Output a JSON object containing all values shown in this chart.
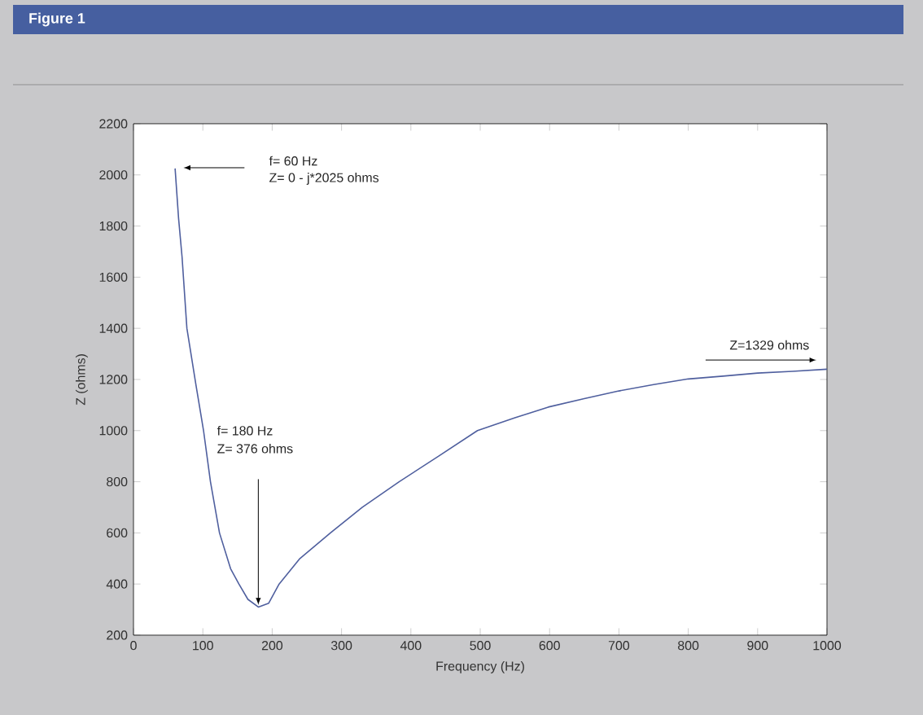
{
  "chart_data": {
    "type": "line",
    "title": "Figure 1",
    "xlabel": "Frequency (Hz)",
    "ylabel": "Z (ohms)",
    "x": [
      60,
      65,
      70,
      77,
      90,
      101,
      111,
      124,
      140,
      152,
      165,
      180,
      195,
      210,
      240,
      284,
      330,
      383,
      440,
      496,
      550,
      598,
      650,
      700,
      750,
      800,
      850,
      900,
      950,
      1000
    ],
    "series": [
      {
        "color": "#4f5f9e",
        "values": [
          2025,
          1830,
          1680,
          1400,
          1180,
          1000,
          800,
          600,
          460,
          400,
          340,
          310,
          325,
          400,
          500,
          600,
          700,
          800,
          900,
          1000,
          1050,
          1092,
          1125,
          1155,
          1180,
          1202,
          1213,
          1225,
          1232,
          1240
        ]
      }
    ],
    "xlim": [
      0,
      1000
    ],
    "ylim": [
      200,
      2200
    ],
    "xticks": [
      0,
      100,
      200,
      300,
      400,
      500,
      600,
      700,
      800,
      900,
      1000
    ],
    "yticks": [
      200,
      400,
      600,
      800,
      1000,
      1200,
      1400,
      1600,
      1800,
      2000,
      2200
    ],
    "grid": false,
    "marker": "none",
    "line_style": "solid",
    "annotations": [
      "f= 60 Hz",
      "Z= 0 - j*2025 ohms",
      "f= 180 Hz",
      "Z= 376 ohms",
      "Z=1329 ohms"
    ]
  }
}
